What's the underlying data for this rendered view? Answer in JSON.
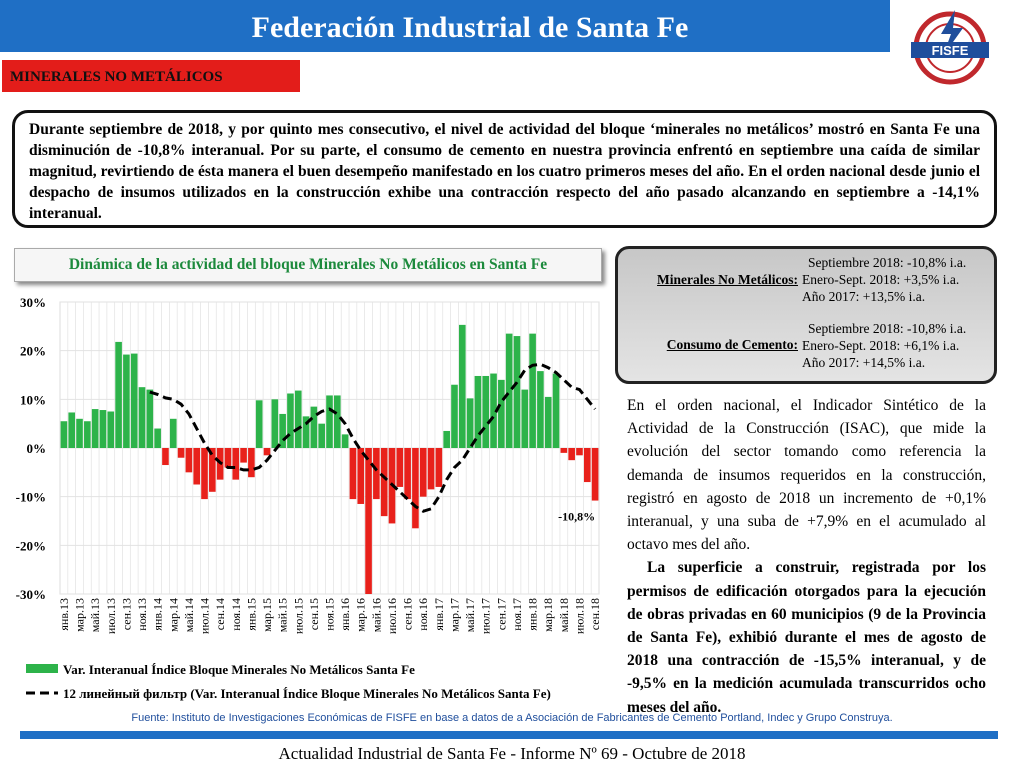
{
  "header": {
    "title": "Federación Industrial de Santa Fe",
    "logo": "FISFE"
  },
  "section": "MINERALES NO METÁLICOS",
  "intro": "Durante septiembre de 2018, y por quinto mes consecutivo, el nivel de actividad del bloque ‘minerales no metálicos’ mostró en Santa Fe una disminución de -10,8% interanual. Por su parte, el consumo de cemento en nuestra provincia enfrentó en septiembre una caída de similar magnitud, revirtiendo de ésta manera el buen desempeño manifestado en los cuatro primeros meses del año. En el orden nacional desde junio el despacho de insumos utilizados en la construcción exhibe una contracción respecto del año pasado alcanzando en septiembre a -14,1% interanual.",
  "summary": [
    {
      "name": "Minerales No Metálicos:",
      "lines": [
        "Septiembre 2018: -10,8% i.a.",
        "Enero-Sept. 2018: +3,5% i.a.",
        "Año 2017: +13,5% i.a."
      ]
    },
    {
      "name": "Consumo de Cemento:",
      "lines": [
        "Septiembre 2018: -10,8% i.a.",
        "Enero-Sept. 2018: +6,1% i.a.",
        "Año 2017: +14,5% i.a."
      ]
    }
  ],
  "right_text": [
    "En el orden nacional, el Indicador Sintético de la Actividad de la Construcción (ISAC), que mide la evolución del sector tomando como referencia la demanda de insumos requeridos en la construcción, registró en agosto de 2018 un incremento de +0,1% interanual, y una suba de +7,9% en el acumulado al octavo mes del año.",
    "La superficie a construir, registrada por los permisos de edificación otorgados para la ejecución de obras privadas en 60 municipios (9 de la Provincia de Santa Fe), exhibió durante el mes de agosto de 2018 una contracción de -15,5% interanual, y de -9,5% en la medición acumulada transcurridos ocho meses del año."
  ],
  "source": "Fuente: Instituto de Investigaciones Económicas de FISFE en base a datos de a Asociación de Fabricantes de Cemento Portland, Indec y Grupo Construya.",
  "footer": "Actualidad Industrial de Santa Fe - Informe Nº 69 - Octubre de 2018",
  "chart_data": {
    "type": "bar",
    "title": "Dinámica de la actividad del bloque Minerales No Metálicos en Santa Fe",
    "categories": [
      "янв.13",
      null,
      "мар.13",
      null,
      "май.13",
      null,
      "июл.13",
      null,
      "сен.13",
      null,
      "ноя.13",
      null,
      "янв.14",
      null,
      "мар.14",
      null,
      "май.14",
      null,
      "июл.14",
      null,
      "сен.14",
      null,
      "ноя.14",
      null,
      "янв.15",
      null,
      "мар.15",
      null,
      "май.15",
      null,
      "июл.15",
      null,
      "сен.15",
      null,
      "ноя.15",
      null,
      "янв.16",
      null,
      "мар.16",
      null,
      "май.16",
      null,
      "июл.16",
      null,
      "сен.16",
      null,
      "ноя.16",
      null,
      "янв.17",
      null,
      "мар.17",
      null,
      "май.17",
      null,
      "июл.17",
      null,
      "сен.17",
      null,
      "ноя.17",
      null,
      "янв.18",
      null,
      "мар.18",
      null,
      "май.18",
      null,
      "июл.18",
      null,
      "сен.18"
    ],
    "series": [
      {
        "name": "Var. Interanual Índice Bloque Minerales No Metálicos Santa Fe",
        "color": "#2db34a",
        "negative_color": "#e8211b",
        "values": [
          5.5,
          7.3,
          6,
          5.5,
          8,
          7.8,
          7.5,
          21.8,
          19.2,
          19.4,
          12.5,
          12,
          4,
          -3.5,
          6,
          -2,
          -5,
          -7.5,
          -10.5,
          -9,
          -6.5,
          -4,
          -6.5,
          -3,
          -6,
          9.8,
          -1.5,
          10,
          7,
          11.2,
          11.8,
          6.5,
          8.5,
          5,
          10.8,
          10.8,
          2.8,
          -10.5,
          -11.5,
          -30,
          -10.5,
          -14,
          -15.5,
          -8,
          -10.5,
          -16.5,
          -10,
          -8.5,
          -8,
          3.5,
          13,
          25.3,
          10.2,
          14.8,
          14.8,
          15.3,
          14,
          23.5,
          23,
          12,
          23.5,
          15.8,
          10.5,
          15.3,
          -1,
          -2.5,
          -1.5,
          -7,
          -10.8
        ],
        "value_labels": [
          null,
          null,
          null,
          null,
          null,
          null,
          null,
          null,
          null,
          null,
          null,
          null,
          null,
          null,
          null,
          null,
          null,
          null,
          null,
          null,
          null,
          null,
          null,
          null,
          null,
          null,
          null,
          null,
          null,
          null,
          null,
          null,
          null,
          null,
          null,
          null,
          null,
          null,
          null,
          null,
          null,
          null,
          null,
          null,
          null,
          null,
          null,
          null,
          null,
          null,
          null,
          null,
          null,
          null,
          null,
          null,
          null,
          null,
          null,
          null,
          null,
          null,
          null,
          null,
          null,
          null,
          null,
          null,
          "-10,8%"
        ]
      },
      {
        "name": "12 линейный фильтр (Var. Interanual Índice Bloque Minerales No Metálicos Santa Fe)",
        "type": "line",
        "color": "#000000",
        "dashed": true,
        "values": [
          null,
          null,
          null,
          null,
          null,
          null,
          null,
          null,
          null,
          null,
          null,
          11.5,
          11,
          10.3,
          10,
          9,
          7,
          4,
          1,
          -1.5,
          -3,
          -4,
          -4,
          -4.5,
          -4.5,
          -4,
          -2.5,
          -0.5,
          1.5,
          3,
          4,
          5,
          6.5,
          7.5,
          8,
          7,
          5,
          2,
          -0.5,
          -2.5,
          -4.5,
          -6,
          -7.5,
          -9,
          -10.5,
          -12,
          -13,
          -12.5,
          -10,
          -6.5,
          -4,
          -2.5,
          0,
          2.5,
          4.5,
          6.5,
          9.5,
          11.5,
          13.5,
          16,
          17,
          17.2,
          16.5,
          15.5,
          14,
          12.5,
          12,
          10,
          8
        ]
      }
    ],
    "ylim": [
      -30,
      30
    ],
    "yticks": [
      {
        "value": 30,
        "label": "30%"
      },
      {
        "value": 20,
        "label": "20%"
      },
      {
        "value": 10,
        "label": "10%"
      },
      {
        "value": 0,
        "label": "0%"
      },
      {
        "value": -10,
        "label": "-10%"
      },
      {
        "value": -20,
        "label": "-20%"
      },
      {
        "value": -30,
        "label": "-30%"
      }
    ],
    "grid": true
  }
}
